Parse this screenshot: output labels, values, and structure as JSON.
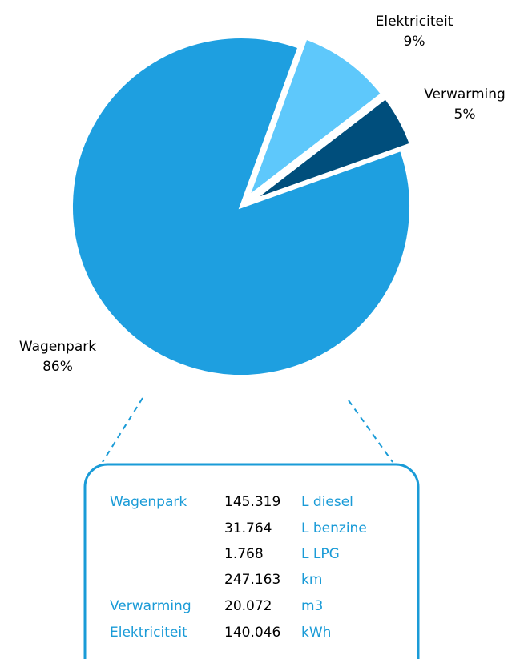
{
  "chart_data": {
    "type": "pie",
    "categories": [
      "Elektriciteit",
      "Verwarming",
      "Wagenpark"
    ],
    "values": [
      9,
      5,
      86
    ],
    "value_labels": [
      "9%",
      "5%",
      "86%"
    ],
    "colors": [
      "#5ec8fb",
      "#004e7c",
      "#1e9fe0"
    ]
  },
  "table": {
    "rows": [
      {
        "label": "Wagenpark",
        "amount": "145.319",
        "unit": "L diesel"
      },
      {
        "amount": "31.764",
        "unit": "L benzine"
      },
      {
        "amount": "1.768",
        "unit": "L LPG"
      },
      {
        "amount": "247.163",
        "unit": "km"
      },
      {
        "label": "Verwarming",
        "amount": "20.072",
        "unit": "m3"
      },
      {
        "label": "Elektriciteit",
        "amount": "140.046",
        "unit": "kWh"
      }
    ]
  }
}
